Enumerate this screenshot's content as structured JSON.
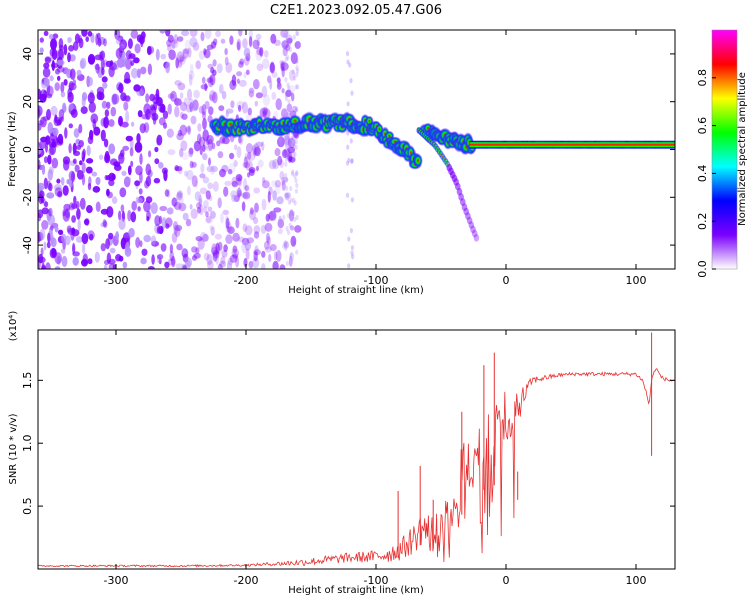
{
  "title": "C2E1.2023.092.05.47.G06",
  "chart_data": [
    {
      "type": "heatmap",
      "xlabel": "Height of straight line (km)",
      "ylabel": "Frequency (Hz)",
      "xlim": [
        -360,
        130
      ],
      "ylim": [
        -50,
        50
      ],
      "xticks": [
        -300,
        -200,
        -100,
        0,
        100
      ],
      "yticks": [
        -40,
        -20,
        0,
        20,
        40
      ],
      "colorbar": {
        "label": "Normalized spectral amplitude",
        "range": [
          0,
          1
        ],
        "ticks": [
          "0.0",
          "0.2",
          "0.4",
          "0.6",
          "0.8"
        ],
        "colors": [
          "#ffffff",
          "#7a00ff",
          "#0000ff",
          "#00ffff",
          "#00ff00",
          "#ffff00",
          "#ff0000",
          "#ff00ff"
        ]
      },
      "ridge": {
        "x": [
          -225,
          -200,
          -175,
          -150,
          -125,
          -105,
          -90,
          -75,
          -67,
          -62,
          -55,
          -45,
          -35,
          -28,
          -20,
          0,
          50,
          100,
          130
        ],
        "y": [
          10,
          9,
          10,
          11,
          11,
          10,
          4,
          -2,
          -6,
          8,
          6,
          4,
          3,
          2,
          2,
          2,
          2,
          2,
          2
        ]
      },
      "branch": {
        "x": [
          -67,
          -55,
          -45,
          -38,
          -32,
          -25,
          -22
        ],
        "y": [
          8,
          2,
          -6,
          -14,
          -24,
          -34,
          -38
        ]
      }
    },
    {
      "type": "line",
      "xlabel": "Height of straight line (km)",
      "ylabel": "SNR (10 * v/v)",
      "multiplier": "(x10⁴)",
      "xlim": [
        -360,
        130
      ],
      "ylim": [
        0,
        1.9
      ],
      "xticks": [
        -300,
        -200,
        -100,
        0,
        100
      ],
      "yticks": [
        "0.5",
        "1.0",
        "1.5"
      ],
      "ytick_values": [
        0.5,
        1.0,
        1.5
      ],
      "color": "#e83030",
      "envelope": {
        "x": [
          -360,
          -250,
          -200,
          -180,
          -160,
          -140,
          -120,
          -100,
          -90,
          -80,
          -70,
          -65,
          -60,
          -55,
          -50,
          -45,
          -40,
          -35,
          -30,
          -25,
          -20,
          -15,
          -10,
          -5,
          0,
          5,
          10,
          15,
          20,
          30,
          40,
          50,
          60,
          80,
          100,
          105,
          108,
          110,
          112,
          115,
          120,
          125,
          130
        ],
        "y": [
          0.025,
          0.025,
          0.03,
          0.04,
          0.05,
          0.07,
          0.09,
          0.1,
          0.12,
          0.16,
          0.25,
          0.33,
          0.3,
          0.25,
          0.3,
          0.35,
          0.5,
          0.7,
          0.8,
          0.95,
          1.05,
          1.05,
          1.1,
          1.15,
          1.2,
          1.25,
          1.3,
          1.4,
          1.5,
          1.52,
          1.54,
          1.55,
          1.55,
          1.55,
          1.55,
          1.5,
          1.4,
          1.3,
          1.5,
          1.6,
          1.52,
          1.5,
          1.5
        ]
      },
      "noise": {
        "x": [
          -360,
          -200,
          -180,
          -150,
          -120,
          -100,
          -80,
          -60,
          -45,
          -30,
          -15,
          0,
          10,
          20,
          40,
          130
        ],
        "y": [
          0.006,
          0.008,
          0.015,
          0.03,
          0.04,
          0.05,
          0.09,
          0.16,
          0.22,
          0.3,
          0.32,
          0.25,
          0.12,
          0.03,
          0.015,
          0.015
        ]
      },
      "spikes": {
        "x": [
          -83,
          -66,
          -56,
          -34,
          -17,
          -9,
          9,
          112
        ],
        "y": [
          0.62,
          0.82,
          0.55,
          1.25,
          1.62,
          1.72,
          0.55,
          1.88
        ]
      }
    }
  ]
}
